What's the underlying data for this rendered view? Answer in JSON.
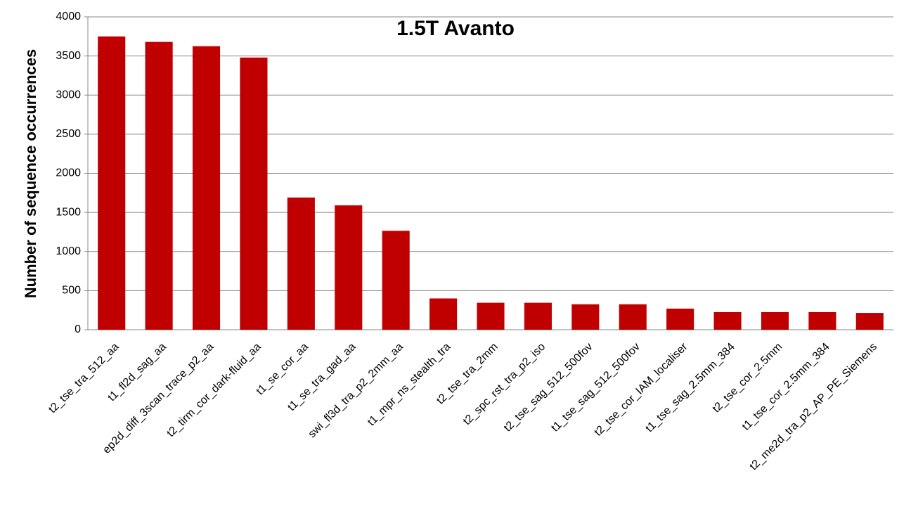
{
  "chart_data": {
    "type": "bar",
    "title": "1.5T Avanto",
    "y_label": "Number of sequence occurrences",
    "categories": [
      "t2_tse_tra_512_aa",
      "t1_fl2d_sag_aa",
      "ep2d_diff_3scan_trace_p2_aa",
      "t2_tirm_cor_dark-fluid_aa",
      "t1_se_cor_aa",
      "t1_se_tra_gad_aa",
      "swi_fl3d_tra_p2_2mm_aa",
      "t1_mpr_ns_stealth_tra",
      "t2_tse_tra_2mm",
      "t2_spc_rst_tra_p2_iso",
      "t2_tse_sag_512_500fov",
      "t1_tse_sag_512_500fov",
      "t2_tse_cor_IAM_localiser",
      "t1_tse_sag_2.5mm_384",
      "t2_tse_cor_2.5mm",
      "t1_tse_cor_2.5mm_384",
      "t2_me2d_tra_p2_AP_PE_Siemens"
    ],
    "values": [
      3750,
      3680,
      3625,
      3480,
      1690,
      1590,
      1265,
      400,
      345,
      345,
      325,
      325,
      270,
      225,
      225,
      225,
      215
    ],
    "color": "#c00000",
    "ylim": [
      0,
      4000
    ],
    "yticks": [
      0,
      500,
      1000,
      1500,
      2000,
      2500,
      3000,
      3500,
      4000
    ],
    "grid": true
  }
}
